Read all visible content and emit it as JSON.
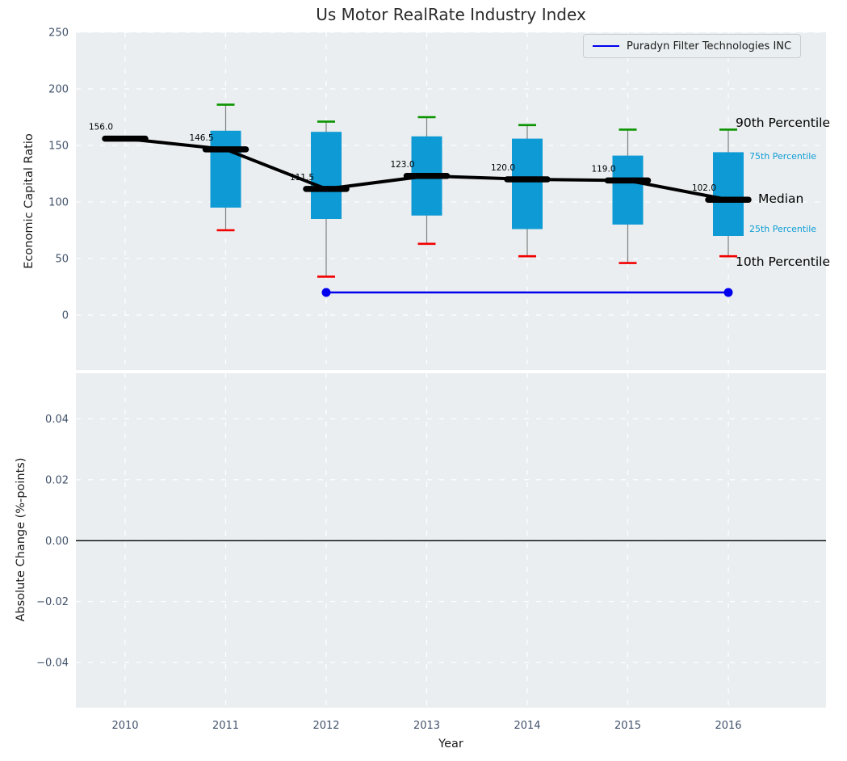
{
  "title": "Us Motor RealRate Industry Index",
  "legend": {
    "label": "Puradyn Filter Technologies INC",
    "line_color": "#0000ee"
  },
  "annotations": {
    "p90": "90th Percentile",
    "p75": "75th Percentile",
    "median": "Median",
    "p25": "25th Percentile",
    "p10": "10th Percentile"
  },
  "colors": {
    "box_fill": "#0e9ad5",
    "cap_top": "#0b9400",
    "cap_bottom": "#f20000",
    "median": "#000000",
    "company_line": "#0000ee",
    "panel_bg": "#eaeef0",
    "grid": "#ffffff",
    "tick_label": "#41526b",
    "whisker_stem": "#7f7f7f",
    "zero_line": "#000000"
  },
  "chart_data": [
    {
      "type": "boxplot",
      "title": "Us Motor RealRate Industry Index",
      "xlabel": "Year",
      "ylabel": "Economic Capital Ratio",
      "categories": [
        2010,
        2011,
        2012,
        2013,
        2014,
        2015,
        2016
      ],
      "xticklabels": [
        "2010",
        "2011",
        "2012",
        "2013",
        "2014",
        "2015",
        "2016"
      ],
      "yticks": [
        0,
        50,
        100,
        150,
        200,
        250
      ],
      "yticklabels": [
        "0",
        "50",
        "100",
        "150",
        "200",
        "250"
      ],
      "ylim": [
        -48,
        250
      ],
      "grid": true,
      "legend_position": "upper right",
      "series": [
        {
          "name": "Median",
          "values": [
            156.0,
            146.5,
            111.5,
            123.0,
            120.0,
            119.0,
            102.0
          ]
        },
        {
          "name": "90th Percentile",
          "values": [
            null,
            186,
            171,
            175,
            168,
            164,
            164
          ]
        },
        {
          "name": "75th Percentile",
          "values": [
            null,
            163,
            162,
            158,
            156,
            141,
            144
          ]
        },
        {
          "name": "25th Percentile",
          "values": [
            null,
            95,
            85,
            88,
            76,
            80,
            70
          ]
        },
        {
          "name": "10th Percentile",
          "values": [
            null,
            75,
            34,
            63,
            52,
            46,
            52
          ]
        }
      ],
      "median_labels": [
        "156.0",
        "146.5",
        "111.5",
        "123.0",
        "120.0",
        "119.0",
        "102.0"
      ],
      "company_line": {
        "name": "Puradyn Filter Technologies INC",
        "x": [
          2012,
          2016
        ],
        "y": [
          20,
          20
        ]
      }
    },
    {
      "type": "empty",
      "xlabel": "Year",
      "ylabel": "Absolute Change (%-points)",
      "categories": [
        2010,
        2011,
        2012,
        2013,
        2014,
        2015,
        2016
      ],
      "yticks": [
        -0.04,
        -0.02,
        0.0,
        0.02,
        0.04
      ],
      "yticklabels": [
        "−0.04",
        "−0.02",
        "0.00",
        "0.02",
        "0.04"
      ],
      "ylim": [
        -0.055,
        0.055
      ],
      "grid": true,
      "zero_line": 0.0
    }
  ]
}
